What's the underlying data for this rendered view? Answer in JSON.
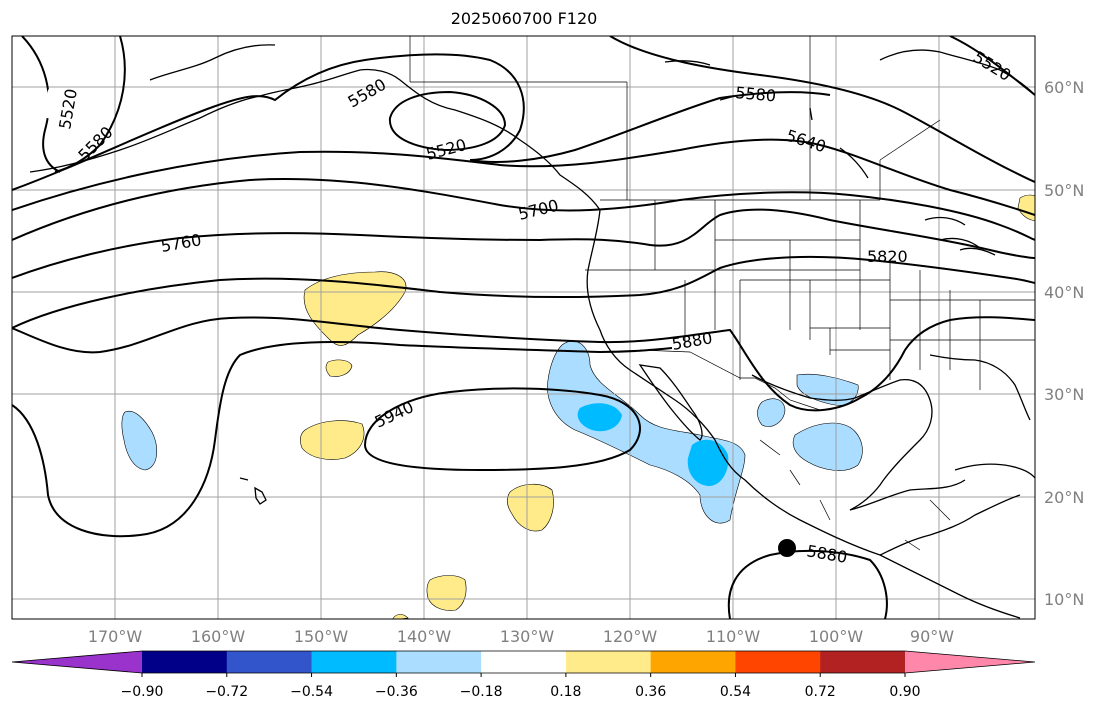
{
  "title": "2025060700 F120",
  "map": {
    "lon_labels": [
      "170°W",
      "160°W",
      "150°W",
      "140°W",
      "130°W",
      "120°W",
      "110°W",
      "100°W",
      "90°W"
    ],
    "lat_labels": [
      "60°N",
      "50°N",
      "40°N",
      "30°N",
      "20°N",
      "10°N"
    ],
    "contour_labels": [
      "5520",
      "5580",
      "5580",
      "5520",
      "5580",
      "5640",
      "5520",
      "5700",
      "5760",
      "5820",
      "5880",
      "5940",
      "5880"
    ],
    "marker": "filled circle"
  },
  "colorbar": {
    "ticks": [
      "−0.90",
      "−0.72",
      "−0.54",
      "−0.36",
      "−0.18",
      "0.18",
      "0.36",
      "0.54",
      "0.72",
      "0.90"
    ],
    "colors": [
      "#9933cc",
      "#000088",
      "#3355cc",
      "#00bbff",
      "#aaddff",
      "#ffffff",
      "#ffeb8a",
      "#ffa500",
      "#ff4500",
      "#b22222",
      "#ff88aa"
    ]
  }
}
